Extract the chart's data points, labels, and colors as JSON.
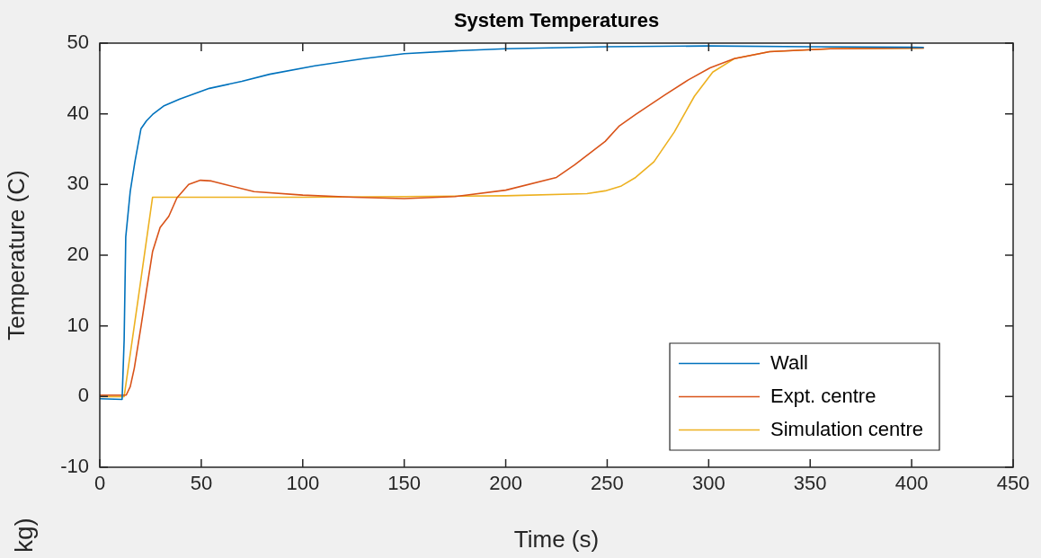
{
  "chart_data": {
    "type": "line",
    "title": "System Temperatures",
    "xlabel": "Time (s)",
    "ylabel": "Temperature (C)",
    "xlim": [
      0,
      450
    ],
    "xticks": [
      0,
      50,
      100,
      150,
      200,
      250,
      300,
      350,
      400,
      450
    ],
    "ylim": [
      -10,
      50
    ],
    "yticks": [
      -10,
      0,
      10,
      20,
      30,
      40,
      50
    ],
    "legend": "bottom right",
    "grid": false,
    "annotations": [
      "kg)"
    ],
    "series": [
      {
        "name": "Wall",
        "color": "#0072bd",
        "x": [
          0,
          11,
          12,
          12.8,
          15,
          17.3,
          20.3,
          23,
          26,
          31.4,
          39.4,
          54,
          70,
          83.7,
          106,
          130,
          150,
          175,
          200,
          250,
          300,
          350,
          406
        ],
        "values": [
          -0.3,
          -0.4,
          8,
          22.6,
          29,
          33.2,
          37.9,
          39,
          39.9,
          41.1,
          42.1,
          43.6,
          44.6,
          45.6,
          46.8,
          47.8,
          48.5,
          48.9,
          49.2,
          49.5,
          49.6,
          49.5,
          49.4
        ]
      },
      {
        "name": "Expt. centre",
        "color": "#d95319",
        "x": [
          0,
          13,
          15,
          17,
          20.3,
          23,
          26,
          29.7,
          34,
          38,
          43.8,
          49.6,
          55,
          61.6,
          76,
          100,
          125,
          150,
          175,
          200,
          225,
          234,
          249,
          256,
          264,
          278.6,
          290,
          300.7,
          312.6,
          330,
          360,
          400,
          406
        ],
        "values": [
          0.2,
          0.2,
          1.4,
          4,
          9.9,
          15,
          20.5,
          23.9,
          25.5,
          28.1,
          30,
          30.6,
          30.5,
          30,
          29,
          28.5,
          28.2,
          28,
          28.3,
          29.2,
          31,
          32.8,
          36.1,
          38.3,
          39.9,
          42.7,
          44.8,
          46.5,
          47.8,
          48.8,
          49.2,
          49.3,
          49.3
        ]
      },
      {
        "name": "Simulation centre",
        "color": "#edb120",
        "x": [
          0,
          12,
          19,
          26,
          100,
          150,
          200,
          240,
          249,
          257,
          264,
          273,
          283,
          293,
          302,
          312.6,
          330,
          360,
          406
        ],
        "values": [
          0,
          0,
          14,
          28.2,
          28.2,
          28.3,
          28.4,
          28.7,
          29.1,
          29.8,
          31,
          33.2,
          37.4,
          42.5,
          45.9,
          47.8,
          48.8,
          49.2,
          49.3
        ]
      }
    ]
  }
}
